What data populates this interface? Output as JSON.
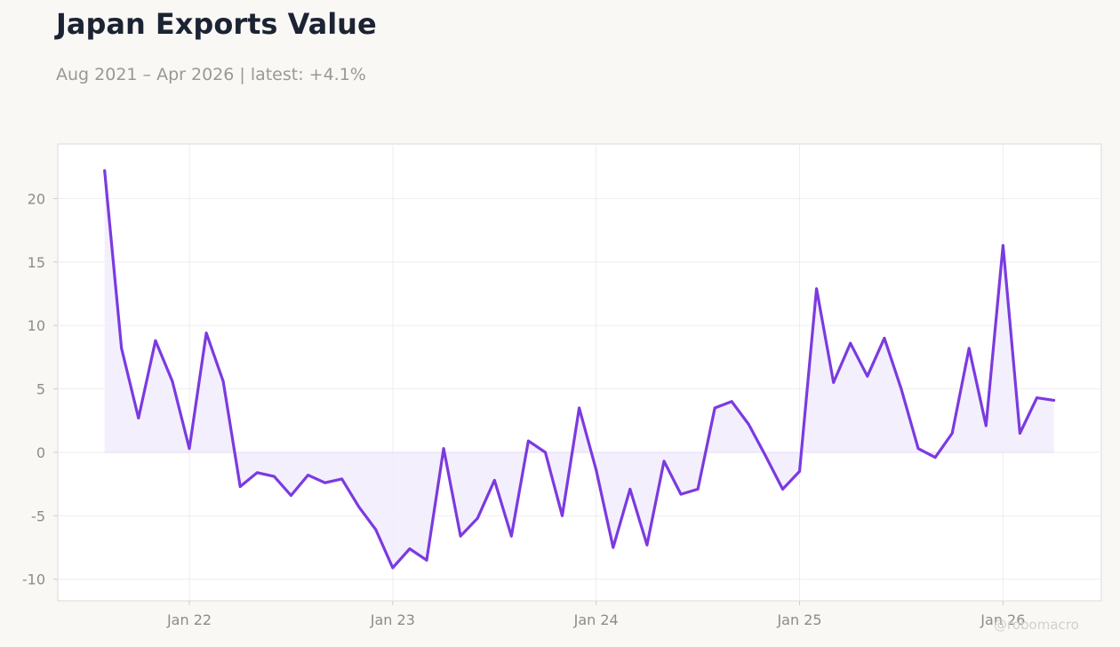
{
  "title": "Japan Exports Value",
  "subtitle": "Aug 2021 – Apr 2026 | latest: +4.1%",
  "watermark": "@robomacro",
  "colors": {
    "line": "#7b3ae0",
    "fill": "#f1ecfc",
    "background": "#f9f8f5",
    "plot_background": "#ffffff"
  },
  "chart_data": {
    "type": "area",
    "title": "Japan Exports Value",
    "subtitle": "Aug 2021 – Apr 2026 | latest: +4.1%",
    "xlabel": "",
    "ylabel": "",
    "ylim": [
      -11.7,
      24.3
    ],
    "grid": true,
    "x_tick_labels": [
      {
        "label": "Jan 22",
        "date": "2022-01"
      },
      {
        "label": "Jan 23",
        "date": "2023-01"
      },
      {
        "label": "Jan 24",
        "date": "2024-01"
      },
      {
        "label": "Jan 25",
        "date": "2025-01"
      },
      {
        "label": "Jan 26",
        "date": "2026-01"
      }
    ],
    "y_ticks": [
      -10,
      -5,
      0,
      5,
      10,
      15,
      20
    ],
    "y_tick_labels": [
      "-10",
      "-5",
      "0",
      "5",
      "10",
      "15",
      "20"
    ],
    "x": [
      "2021-08",
      "2021-09",
      "2021-10",
      "2021-11",
      "2021-12",
      "2022-01",
      "2022-02",
      "2022-03",
      "2022-04",
      "2022-05",
      "2022-06",
      "2022-07",
      "2022-08",
      "2022-09",
      "2022-10",
      "2022-11",
      "2022-12",
      "2023-01",
      "2023-02",
      "2023-03",
      "2023-04",
      "2023-05",
      "2023-06",
      "2023-07",
      "2023-08",
      "2023-09",
      "2023-10",
      "2023-11",
      "2023-12",
      "2024-01",
      "2024-02",
      "2024-03",
      "2024-04",
      "2024-05",
      "2024-06",
      "2024-07",
      "2024-08",
      "2024-09",
      "2024-10",
      "2024-11",
      "2024-12",
      "2025-01",
      "2025-02",
      "2025-03",
      "2025-04",
      "2025-05",
      "2025-06",
      "2025-07",
      "2025-08",
      "2025-09",
      "2025-10",
      "2025-11",
      "2025-12",
      "2026-01",
      "2026-02",
      "2026-03",
      "2026-04"
    ],
    "values": [
      22.2,
      8.2,
      2.7,
      8.8,
      5.6,
      0.3,
      9.4,
      5.6,
      -2.7,
      -1.6,
      -1.9,
      -3.4,
      -1.8,
      -2.4,
      -2.1,
      -4.3,
      -6.1,
      -9.1,
      -7.6,
      -8.5,
      0.3,
      -6.6,
      -5.2,
      -2.2,
      -6.6,
      0.9,
      0.0,
      -5.0,
      3.5,
      -1.4,
      -7.5,
      -2.9,
      -7.3,
      -0.7,
      -3.3,
      -2.9,
      3.5,
      4.0,
      2.2,
      -0.3,
      -2.9,
      -1.5,
      12.9,
      5.5,
      8.6,
      6.0,
      9.0,
      5.0,
      0.3,
      -0.4,
      1.5,
      8.2,
      2.1,
      16.3,
      1.5,
      4.3,
      4.1
    ]
  }
}
